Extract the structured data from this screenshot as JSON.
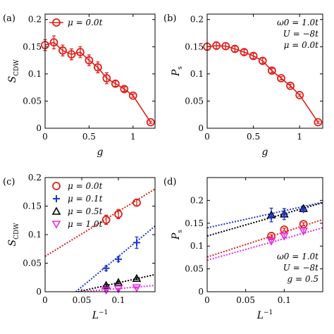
{
  "chart_data": [
    {
      "id": "a",
      "panel_label": "(a)",
      "type": "line",
      "xlabel": "g",
      "ylabel": "S_CDW",
      "xlim": [
        0,
        1.25
      ],
      "ylim": [
        0,
        0.21
      ],
      "xticks": [
        0,
        0.5,
        1
      ],
      "xtick_labels": [
        "0",
        "0.5",
        "1"
      ],
      "yticks": [
        0,
        0.05,
        0.1,
        0.15,
        0.2
      ],
      "ytick_labels": [
        "0",
        "0.05",
        "0.1",
        "0.15",
        "0.2"
      ],
      "legend": {
        "position": "top-left",
        "entries": [
          {
            "label": "μ = 0.0t",
            "marker": "circle",
            "color": "#e0201a",
            "line": true
          }
        ]
      },
      "series": [
        {
          "name": "μ = 0.0t",
          "color": "#e0201a",
          "marker": "circle",
          "line": "solid",
          "errcolor": "#e0201a",
          "x": [
            0,
            0.1,
            0.2,
            0.3,
            0.4,
            0.5,
            0.6,
            0.7,
            0.8,
            0.9,
            1.0,
            1.2
          ],
          "y": [
            0.153,
            0.158,
            0.143,
            0.136,
            0.14,
            0.125,
            0.112,
            0.092,
            0.082,
            0.072,
            0.06,
            0.011
          ],
          "err": [
            0.01,
            0.012,
            0.01,
            0.01,
            0.01,
            0.01,
            0.01,
            0.01,
            0.005,
            0.004,
            0.003,
            0.002
          ]
        }
      ]
    },
    {
      "id": "b",
      "panel_label": "(b)",
      "type": "line",
      "xlabel": "g",
      "ylabel": "P_s",
      "xlim": [
        0,
        1.25
      ],
      "ylim": [
        0,
        0.21
      ],
      "xticks": [
        0,
        0.5,
        1
      ],
      "xtick_labels": [
        "0",
        "0.5",
        "1"
      ],
      "yticks": [
        0,
        0.05,
        0.1,
        0.15,
        0.2
      ],
      "ytick_labels": [
        "0",
        "0.05",
        "0.1",
        "0.15",
        "0.2"
      ],
      "annotation": [
        "ω0 = 1.0t",
        "U = −8t",
        "μ = 0.0t"
      ],
      "series": [
        {
          "name": "",
          "color": "#e0201a",
          "marker": "circle",
          "line": "solid",
          "errcolor": "#e0201a",
          "x": [
            0,
            0.1,
            0.2,
            0.3,
            0.4,
            0.5,
            0.6,
            0.7,
            0.8,
            0.9,
            1.0,
            1.2
          ],
          "y": [
            0.15,
            0.152,
            0.151,
            0.146,
            0.14,
            0.133,
            0.124,
            0.106,
            0.092,
            0.078,
            0.061,
            0.011
          ],
          "err": [
            0.006,
            0.007,
            0.006,
            0.005,
            0.005,
            0.005,
            0.005,
            0.004,
            0.003,
            0.003,
            0.002,
            0.002
          ]
        }
      ]
    },
    {
      "id": "c",
      "panel_label": "(c)",
      "type": "scatter",
      "xlabel": "L^-1",
      "ylabel": "S_CDW",
      "xlim": [
        0,
        0.15
      ],
      "ylim": [
        0,
        0.2
      ],
      "xticks": [
        0,
        0.05,
        0.1
      ],
      "xtick_labels": [
        "0",
        "0.05",
        "0.1"
      ],
      "yticks": [
        0,
        0.05,
        0.1,
        0.15,
        0.2
      ],
      "ytick_labels": [
        "0",
        "0.05",
        "0.1",
        "0.15",
        "0.2"
      ],
      "legend": {
        "position": "top-left",
        "entries": [
          {
            "label": "μ = 0.0t",
            "marker": "circle",
            "color": "#e0201a"
          },
          {
            "label": "μ = 0.1t",
            "marker": "plus",
            "color": "#1f35c8"
          },
          {
            "label": "μ = 0.5t",
            "marker": "triangle",
            "color": "#000000"
          },
          {
            "label": "μ = 1.0t",
            "marker": "triangle-down",
            "color": "#e62ee6"
          }
        ]
      },
      "series": [
        {
          "name": "μ = 0.0t",
          "color": "#e0201a",
          "marker": "circle",
          "errcolor": "#e0201a",
          "x": [
            0.0833,
            0.1,
            0.125
          ],
          "y": [
            0.126,
            0.136,
            0.156
          ],
          "err": [
            0.008,
            0.008,
            0.006
          ],
          "fit": {
            "x": [
              0,
              0.15
            ],
            "y": [
              0.062,
              0.18
            ]
          }
        },
        {
          "name": "μ = 0.1t",
          "color": "#1f35c8",
          "marker": "plus",
          "errcolor": "#1f35c8",
          "x": [
            0.0833,
            0.1,
            0.125
          ],
          "y": [
            0.041,
            0.057,
            0.086
          ],
          "err": [
            0.004,
            0.004,
            0.01
          ],
          "fit": {
            "x": [
              0.042,
              0.15
            ],
            "y": [
              0,
              0.115
            ]
          }
        },
        {
          "name": "μ = 0.5t",
          "color": "#000000",
          "marker": "triangle",
          "errcolor": "#000000",
          "x": [
            0.0833,
            0.1,
            0.125
          ],
          "y": [
            0.011,
            0.016,
            0.023
          ],
          "err": [
            0.002,
            0.002,
            0.002
          ],
          "fit": {
            "x": [
              0.045,
              0.15
            ],
            "y": [
              0,
              0.03
            ]
          }
        },
        {
          "name": "μ = 1.0t",
          "color": "#e62ee6",
          "marker": "triangle-down",
          "errcolor": "#e62ee6",
          "x": [
            0.0833,
            0.1,
            0.125
          ],
          "y": [
            0.003,
            0.005,
            0.007
          ],
          "err": [
            0.001,
            0.001,
            0.001
          ],
          "fit": {
            "x": [
              0.05,
              0.15
            ],
            "y": [
              0,
              0.011
            ]
          }
        }
      ]
    },
    {
      "id": "d",
      "panel_label": "(d)",
      "type": "scatter",
      "xlabel": "L^-1",
      "ylabel": "P_s",
      "xlim": [
        0,
        0.15
      ],
      "ylim": [
        0,
        0.25
      ],
      "xticks": [
        0,
        0.05,
        0.1
      ],
      "xtick_labels": [
        "0",
        "0.05",
        "0.1"
      ],
      "yticks": [
        0,
        0.05,
        0.1,
        0.15,
        0.2
      ],
      "ytick_labels": [
        "0",
        "0.05",
        "0.1",
        "0.15",
        "0.2"
      ],
      "annotation": [
        "ω0 = 1.0t",
        "U = −8t",
        "g = 0.5"
      ],
      "series": [
        {
          "name": "",
          "color": "#e0201a",
          "marker": "circle",
          "errcolor": "#e0201a",
          "x": [
            0.0833,
            0.1,
            0.125
          ],
          "y": [
            0.122,
            0.136,
            0.148
          ],
          "err": [
            0.003,
            0.003,
            0.003
          ],
          "fit": {
            "x": [
              0,
              0.15
            ],
            "y": [
              0.076,
              0.158
            ]
          }
        },
        {
          "name": "",
          "color": "#e62ee6",
          "marker": "triangle-down",
          "errcolor": "#e62ee6",
          "x": [
            0.0833,
            0.1,
            0.125
          ],
          "y": [
            0.111,
            0.122,
            0.133
          ],
          "err": [
            0.003,
            0.003,
            0.003
          ],
          "fit": {
            "x": [
              0,
              0.15
            ],
            "y": [
              0.069,
              0.14
            ]
          }
        },
        {
          "name": "",
          "color": "#000000",
          "marker": "triangle",
          "errcolor": "#1f35c8",
          "x": [
            0.0833,
            0.1,
            0.125
          ],
          "y": [
            0.168,
            0.17,
            0.182
          ],
          "err": [
            0.015,
            0.012,
            0.006
          ],
          "fit": {
            "x": [
              0,
              0.15
            ],
            "y": [
              0.122,
              0.195
            ]
          }
        },
        {
          "name": "",
          "color": "#1f35c8",
          "marker": "plus",
          "errcolor": "#1f35c8",
          "x": [
            0.0833,
            0.1,
            0.125
          ],
          "y": [
            0.165,
            0.17,
            0.18
          ],
          "err": [
            0.003,
            0.003,
            0.003
          ],
          "fit": {
            "x": [
              0,
              0.15
            ],
            "y": [
              0.14,
              0.196
            ]
          }
        }
      ]
    }
  ]
}
